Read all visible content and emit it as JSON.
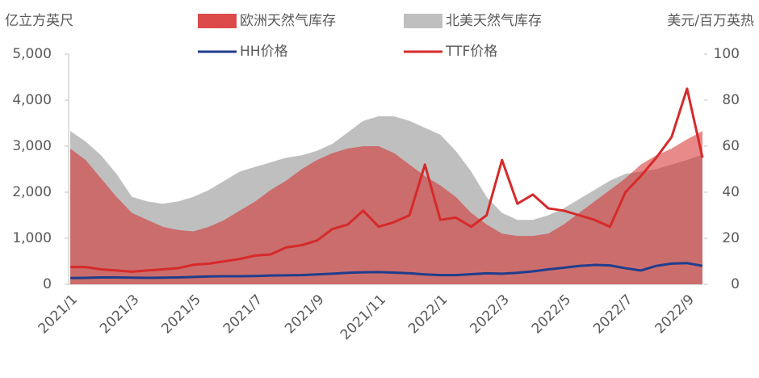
{
  "chart_data": {
    "type": "combo",
    "y_label": "亿立方英尺",
    "y2_label": "美元/百万英热",
    "categories": [
      "2021/1",
      null,
      null,
      null,
      "2021/3",
      null,
      null,
      null,
      "2021/5",
      null,
      null,
      null,
      "2021/7",
      null,
      null,
      null,
      "2021/9",
      null,
      null,
      null,
      "2021/11",
      null,
      null,
      null,
      "2022/1",
      null,
      null,
      null,
      "2022/3",
      null,
      null,
      null,
      "2022/5",
      null,
      null,
      null,
      "2022/7",
      null,
      null,
      null,
      "2022/9",
      null
    ],
    "ylim": [
      0,
      5000
    ],
    "yticks": [
      0,
      {
        "value": 1000,
        "label": "1,000"
      },
      {
        "value": 2000,
        "label": "2,000"
      },
      {
        "value": 3000,
        "label": "3,000"
      },
      {
        "value": 4000,
        "label": "4,000"
      },
      {
        "value": 5000,
        "label": "5,000"
      }
    ],
    "y2lim": [
      0,
      100
    ],
    "y2ticks": [
      0,
      20,
      40,
      60,
      80,
      100
    ],
    "series": [
      {
        "name": "北美天然气库存",
        "type": "area",
        "color": "#bfbfbf",
        "values": [
          3330,
          3100,
          2800,
          2400,
          1900,
          1800,
          1750,
          1800,
          1900,
          2050,
          2250,
          2450,
          2550,
          2650,
          2750,
          2800,
          2900,
          3050,
          3300,
          3550,
          3650,
          3650,
          3550,
          3400,
          3250,
          2900,
          2450,
          1900,
          1550,
          1400,
          1400,
          1500,
          1650,
          1850,
          2050,
          2250,
          2400,
          2450,
          2500,
          2600,
          2700,
          2820
        ]
      },
      {
        "name": "欧洲天然气库存",
        "type": "area",
        "color": "#d62a2a",
        "values": [
          2950,
          2700,
          2300,
          1900,
          1550,
          1400,
          1250,
          1180,
          1150,
          1250,
          1400,
          1600,
          1800,
          2050,
          2250,
          2500,
          2700,
          2850,
          2950,
          3000,
          3000,
          2850,
          2600,
          2350,
          2150,
          1900,
          1550,
          1300,
          1100,
          1050,
          1050,
          1100,
          1300,
          1550,
          1800,
          2050,
          2300,
          2600,
          2800,
          2950,
          3150,
          3330
        ]
      },
      {
        "name": "HH价格",
        "type": "line",
        "axis": "y2",
        "color": "#1f3d8c",
        "values": [
          2.7,
          2.8,
          3,
          3,
          2.9,
          2.8,
          2.9,
          3,
          3.2,
          3.4,
          3.5,
          3.5,
          3.6,
          3.8,
          3.9,
          4,
          4.3,
          4.6,
          5,
          5.2,
          5.3,
          5.1,
          4.8,
          4.3,
          4,
          4,
          4.4,
          4.8,
          4.6,
          5,
          5.6,
          6.5,
          7.2,
          8,
          8.4,
          8.2,
          7,
          6,
          8,
          9,
          9.2,
          8
        ]
      },
      {
        "name": "TTF价格",
        "type": "line",
        "axis": "y2",
        "color": "#d62a2a",
        "values": [
          7.5,
          7.5,
          6.5,
          6,
          5.5,
          6,
          6.5,
          7,
          8.5,
          9,
          10,
          11,
          12.5,
          13,
          16,
          17,
          19,
          24,
          26,
          32,
          25,
          27,
          30,
          52,
          28,
          29,
          25,
          30,
          54,
          35,
          39,
          33,
          32,
          30,
          28,
          25,
          40,
          47,
          55,
          64,
          85,
          55
        ]
      }
    ]
  }
}
